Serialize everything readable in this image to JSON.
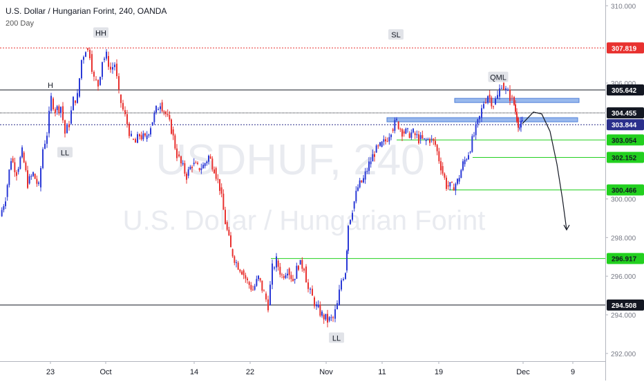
{
  "header": {
    "title": "U.S. Dollar / Hungarian Forint, 240, OANDA",
    "indicator": "200 Day"
  },
  "watermark": {
    "symbol": "USDHUF, 240",
    "name": "U.S. Dollar / Hungarian Forint"
  },
  "colors": {
    "up": "#2a39d6",
    "down": "#e8312f",
    "level": "#22d01f",
    "sl": "#e8312f",
    "dark": "#131722",
    "navy": "#2a2f8c",
    "zone": "#7fa8e8"
  },
  "chart_data": {
    "type": "line",
    "ylim": [
      291.6,
      310.3
    ],
    "xlim": [
      0,
      932
    ],
    "x_ticks": [
      {
        "label": "23",
        "i": 73
      },
      {
        "label": "Oct",
        "i": 153
      },
      {
        "label": "14",
        "i": 281
      },
      {
        "label": "22",
        "i": 362
      },
      {
        "label": "Nov",
        "i": 472
      },
      {
        "label": "11",
        "i": 553
      },
      {
        "label": "19",
        "i": 635
      },
      {
        "label": "Dec",
        "i": 757
      },
      {
        "label": "9",
        "i": 829
      }
    ],
    "y_ticks": [
      "310.000",
      "306.000",
      "300.000",
      "298.000",
      "296.000",
      "294.000",
      "292.000"
    ],
    "price_tags": [
      {
        "label": "307.819",
        "style": "sl"
      },
      {
        "label": "305.642",
        "style": "dark"
      },
      {
        "label": "304.455",
        "style": "dark"
      },
      {
        "label": "303.844",
        "style": "navy"
      },
      {
        "label": "303.054",
        "style": "level"
      },
      {
        "label": "302.152",
        "style": "level"
      },
      {
        "label": "300.466",
        "style": "level"
      },
      {
        "label": "296.917",
        "style": "level"
      },
      {
        "label": "294.508",
        "style": "dark"
      }
    ],
    "series": [
      {
        "values": [
          [
            0,
            299.1
          ],
          [
            8,
            300.1
          ],
          [
            16,
            302.1
          ],
          [
            24,
            301.4
          ],
          [
            32,
            302.4
          ],
          [
            40,
            300.8
          ],
          [
            48,
            301.3
          ],
          [
            56,
            300.6
          ],
          [
            62,
            302.6
          ],
          [
            68,
            303.4
          ],
          [
            74,
            305.2
          ],
          [
            80,
            304.6
          ],
          [
            88,
            304.8
          ],
          [
            94,
            303.4
          ],
          [
            100,
            303.9
          ],
          [
            106,
            305.1
          ],
          [
            112,
            305.3
          ],
          [
            118,
            307.2
          ],
          [
            124,
            307.8
          ],
          [
            130,
            307.5
          ],
          [
            136,
            306.2
          ],
          [
            142,
            305.9
          ],
          [
            148,
            307.2
          ],
          [
            154,
            307.4
          ],
          [
            160,
            306.7
          ],
          [
            166,
            307.0
          ],
          [
            172,
            305.4
          ],
          [
            178,
            304.6
          ],
          [
            184,
            303.9
          ],
          [
            190,
            303.1
          ],
          [
            196,
            302.9
          ],
          [
            202,
            303.3
          ],
          [
            210,
            303.1
          ],
          [
            218,
            303.8
          ],
          [
            226,
            304.6
          ],
          [
            232,
            305.0
          ],
          [
            240,
            304.4
          ],
          [
            248,
            303.6
          ],
          [
            256,
            302.3
          ],
          [
            262,
            301.8
          ],
          [
            270,
            301.2
          ],
          [
            278,
            301.8
          ],
          [
            286,
            301.6
          ],
          [
            294,
            301.7
          ],
          [
            302,
            302.2
          ],
          [
            310,
            301.6
          ],
          [
            318,
            300.6
          ],
          [
            326,
            298.8
          ],
          [
            334,
            297.4
          ],
          [
            342,
            296.7
          ],
          [
            350,
            296.3
          ],
          [
            358,
            295.7
          ],
          [
            366,
            295.3
          ],
          [
            374,
            295.9
          ],
          [
            382,
            295.1
          ],
          [
            388,
            294.5
          ],
          [
            394,
            296.4
          ],
          [
            400,
            296.8
          ],
          [
            408,
            296.0
          ],
          [
            416,
            296.4
          ],
          [
            424,
            295.8
          ],
          [
            432,
            296.6
          ],
          [
            440,
            296.5
          ],
          [
            446,
            295.3
          ],
          [
            452,
            294.9
          ],
          [
            458,
            294.4
          ],
          [
            466,
            294.0
          ],
          [
            474,
            293.7
          ],
          [
            482,
            293.8
          ],
          [
            488,
            294.5
          ],
          [
            494,
            295.8
          ],
          [
            500,
            296.3
          ],
          [
            504,
            298.7
          ],
          [
            510,
            299.5
          ],
          [
            518,
            300.6
          ],
          [
            526,
            301.0
          ],
          [
            534,
            301.8
          ],
          [
            542,
            302.4
          ],
          [
            550,
            302.7
          ],
          [
            558,
            303.0
          ],
          [
            566,
            303.6
          ],
          [
            574,
            304.0
          ],
          [
            582,
            303.5
          ],
          [
            590,
            303.4
          ],
          [
            598,
            303.4
          ],
          [
            606,
            303.1
          ],
          [
            614,
            303.0
          ],
          [
            622,
            303.1
          ],
          [
            630,
            302.8
          ],
          [
            638,
            301.7
          ],
          [
            646,
            300.7
          ],
          [
            654,
            300.6
          ],
          [
            662,
            300.9
          ],
          [
            670,
            301.8
          ],
          [
            678,
            302.4
          ],
          [
            686,
            303.3
          ],
          [
            694,
            304.2
          ],
          [
            700,
            305.0
          ],
          [
            706,
            305.4
          ],
          [
            714,
            304.9
          ],
          [
            720,
            305.3
          ],
          [
            726,
            306.0
          ],
          [
            732,
            305.6
          ],
          [
            738,
            305.3
          ],
          [
            744,
            304.9
          ],
          [
            748,
            304.2
          ],
          [
            752,
            303.7
          ],
          [
            756,
            303.9
          ]
        ]
      }
    ],
    "annotations": [
      {
        "text": "HH",
        "x": 146,
        "y": 308.6,
        "kind": "box"
      },
      {
        "text": "H",
        "x": 73,
        "y": 305.9,
        "kind": "plain"
      },
      {
        "text": "LL",
        "x": 94,
        "y": 302.4,
        "kind": "box"
      },
      {
        "text": "SL",
        "x": 573,
        "y": 308.5,
        "kind": "box"
      },
      {
        "text": "QML",
        "x": 721,
        "y": 306.3,
        "kind": "box"
      },
      {
        "text": "LL",
        "x": 487,
        "y": 292.8,
        "kind": "box"
      }
    ]
  }
}
